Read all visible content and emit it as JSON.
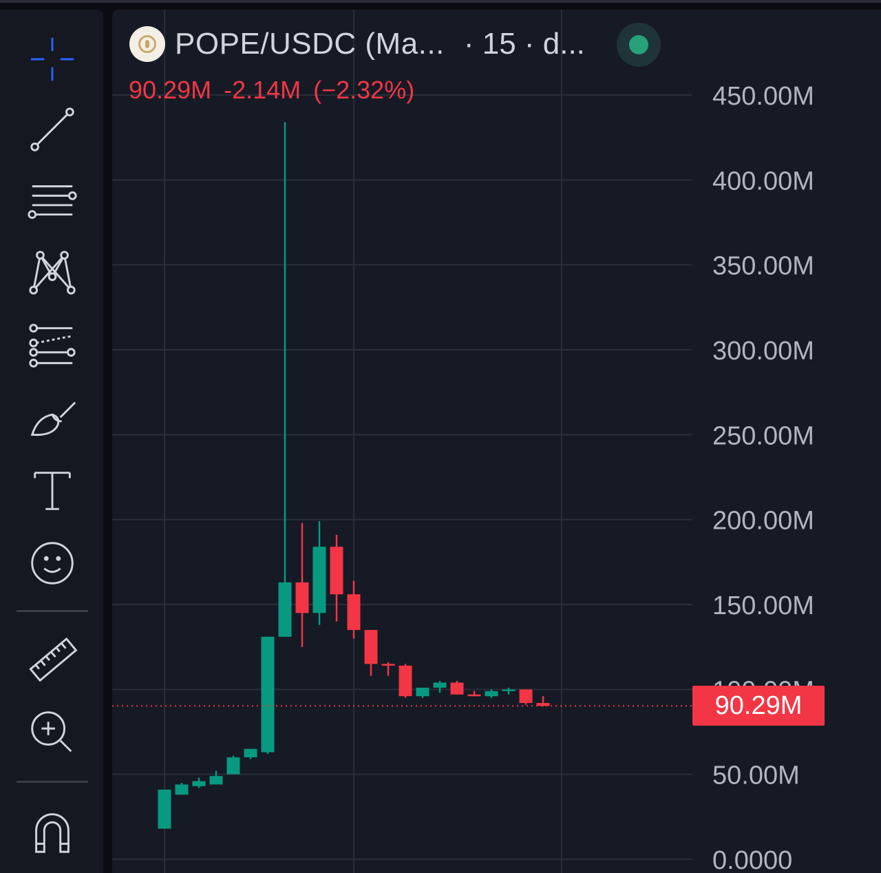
{
  "header": {
    "symbol": "POPE/USDC (Ma...",
    "interval": "· 15 · d...",
    "status_color": "#26a17a",
    "logo": "pope-coin-logo"
  },
  "quote": {
    "last": "90.29M",
    "change": "-2.14M",
    "change_pct": "(−2.32%)"
  },
  "current_price_label": "90.29M",
  "toolbar": {
    "tools": [
      "crosshair-icon",
      "trend-line-icon",
      "horizontal-lines-icon",
      "pattern-icon",
      "fib-projection-icon",
      "brush-icon",
      "text-icon",
      "emoji-icon",
      "ruler-icon",
      "zoom-in-icon",
      "magnet-icon"
    ]
  },
  "colors": {
    "up": "#089981",
    "down": "#f23645",
    "background": "#161a25",
    "grid": "#2a2e39",
    "axis_text": "#b2b5be"
  },
  "chart_data": {
    "type": "candlestick",
    "title": "",
    "xlabel": "",
    "ylabel": "",
    "ylim": [
      0,
      450000000
    ],
    "y_ticks": [
      "450.00M",
      "400.00M",
      "350.00M",
      "300.00M",
      "250.00M",
      "200.00M",
      "150.00M",
      "100.00M",
      "50.00M",
      "0.0000"
    ],
    "current_price": 90290000,
    "grid": true,
    "candles": [
      {
        "o": 18,
        "h": 41,
        "l": 18,
        "c": 41
      },
      {
        "o": 38,
        "h": 45,
        "l": 38,
        "c": 44
      },
      {
        "o": 43,
        "h": 48,
        "l": 42,
        "c": 46
      },
      {
        "o": 44,
        "h": 52,
        "l": 44,
        "c": 49
      },
      {
        "o": 50,
        "h": 61,
        "l": 50,
        "c": 60
      },
      {
        "o": 60,
        "h": 65,
        "l": 59,
        "c": 65
      },
      {
        "o": 63,
        "h": 131,
        "l": 62,
        "c": 131
      },
      {
        "o": 131,
        "h": 434,
        "l": 131,
        "c": 163
      },
      {
        "o": 163,
        "h": 198,
        "l": 125,
        "c": 145
      },
      {
        "o": 145,
        "h": 199,
        "l": 138,
        "c": 184
      },
      {
        "o": 184,
        "h": 191,
        "l": 140,
        "c": 156
      },
      {
        "o": 156,
        "h": 164,
        "l": 130,
        "c": 135
      },
      {
        "o": 135,
        "h": 135,
        "l": 108,
        "c": 115
      },
      {
        "o": 115,
        "h": 116,
        "l": 108,
        "c": 114
      },
      {
        "o": 114,
        "h": 115,
        "l": 95,
        "c": 96
      },
      {
        "o": 96,
        "h": 101,
        "l": 95,
        "c": 101
      },
      {
        "o": 101,
        "h": 105,
        "l": 98,
        "c": 104
      },
      {
        "o": 104,
        "h": 105,
        "l": 97,
        "c": 97
      },
      {
        "o": 97,
        "h": 99,
        "l": 96,
        "c": 96
      },
      {
        "o": 96,
        "h": 100,
        "l": 95,
        "c": 99
      },
      {
        "o": 99,
        "h": 101,
        "l": 97,
        "c": 100
      },
      {
        "o": 100,
        "h": 100,
        "l": 91,
        "c": 92
      },
      {
        "o": 92,
        "h": 96,
        "l": 90,
        "c": 90.29
      }
    ]
  }
}
